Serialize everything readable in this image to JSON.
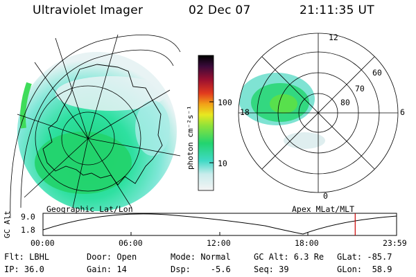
{
  "header": {
    "instrument": "Ultraviolet Imager",
    "date": "02 Dec 07",
    "time": "21:11:35 UT"
  },
  "colorbar": {
    "unit_label": "photon cm⁻²s⁻¹",
    "ticks": [
      "100",
      "10"
    ]
  },
  "left_panel": {
    "label": "Geographic Lat/Lon"
  },
  "right_panel": {
    "label": "Apex MLat/MLT",
    "mlt_labels": [
      "12",
      "18",
      "6",
      "0"
    ],
    "mlat_labels": [
      "60",
      "70",
      "80"
    ]
  },
  "altitude_plot": {
    "ylabel": "GC Alt",
    "yticks": [
      "9.0",
      "1.8"
    ],
    "xticks": [
      "00:00",
      "06:00",
      "12:00",
      "18:00",
      "23:59"
    ],
    "marker_color": "#cc0000",
    "current_time_fraction": 0.883
  },
  "info": {
    "filter": "Flt: LBHL",
    "door": "Door: Open",
    "mode": "Mode: Normal",
    "gc_alt": "GC Alt: 6.3 Re",
    "glat": "GLat: -85.7",
    "ip": "IP: 36.0",
    "gain": "Gain: 14",
    "dsp": "Dsp:    -5.6",
    "seq": "Seq: 39",
    "glon": "GLon:  58.9"
  }
}
